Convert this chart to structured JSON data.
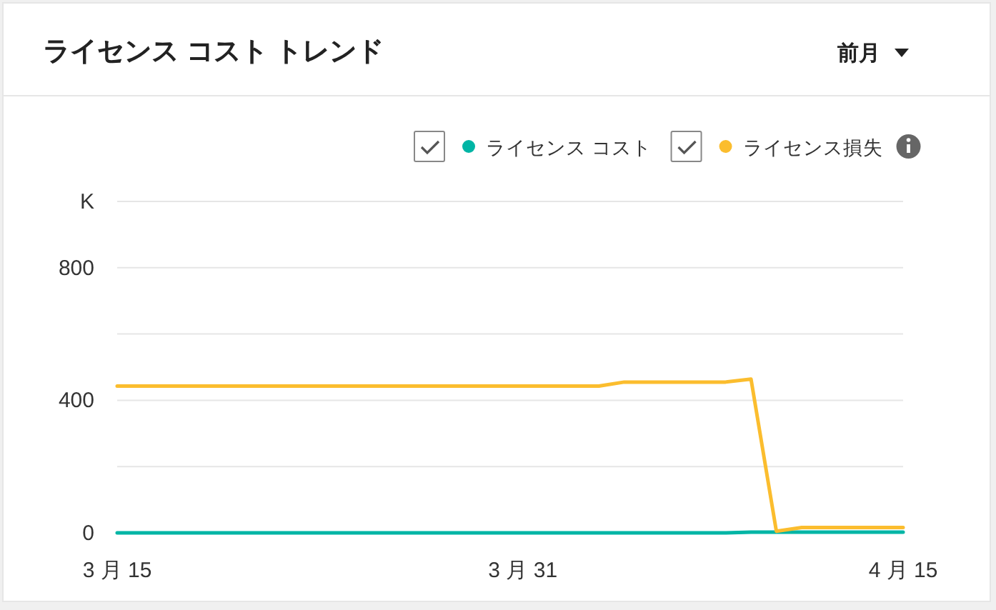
{
  "chart_data": {
    "type": "line",
    "title": "ライセンス コスト トレンド",
    "annotations": [
      "前月"
    ],
    "ylabel": "K",
    "x": [
      "--03-15",
      "--04-03",
      "--04-04",
      "--04-08",
      "--04-09",
      "--04-10",
      "--04-11",
      "--04-15"
    ],
    "series": [
      {
        "name": "ライセンス コスト",
        "color": "#00b5a5",
        "x": [
          "--03-15",
          "--04-08",
          "--04-09",
          "--04-15"
        ],
        "values": [
          0,
          0,
          2,
          2
        ]
      },
      {
        "name": "ライセンス損失",
        "color": "#fbbd2e",
        "values": [
          443,
          443,
          455,
          455,
          464,
          5,
          16,
          16
        ]
      }
    ],
    "xlim": [
      "--03-15",
      "--04-15"
    ],
    "xticks": [
      {
        "value": "--03-15",
        "label": "3 月 15"
      },
      {
        "value": "--03-31",
        "label": "3 月 31"
      },
      {
        "value": "--04-15",
        "label": "4 月 15"
      }
    ],
    "ylim": [
      0,
      1000
    ],
    "yticks": [
      0,
      {
        "value": 200,
        "label": null
      },
      400,
      {
        "value": 600,
        "label": null
      },
      800,
      {
        "value": 1000,
        "label": null
      }
    ],
    "grid": "y",
    "legend": "top right",
    "marker": "none",
    "line_style": "solid"
  }
}
